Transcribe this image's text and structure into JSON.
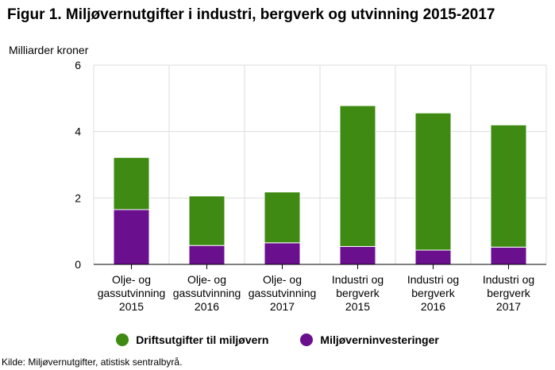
{
  "chart_data": {
    "type": "bar",
    "stacked": true,
    "title": "Figur 1. Miljøvernutgifter i industri, bergverk og utvinning 2015-2017",
    "ylabel": "Milliarder kroner",
    "xlabel": "",
    "ylim": [
      0,
      6
    ],
    "yticks": [
      0,
      2,
      4,
      6
    ],
    "grid": true,
    "legend_position": "bottom",
    "categories": [
      [
        "Olje- og",
        "gassutvinning",
        "2015"
      ],
      [
        "Olje- og",
        "gassutvinning",
        "2016"
      ],
      [
        "Olje- og",
        "gassutvinning",
        "2017"
      ],
      [
        "Industri og",
        "bergverk",
        "2015"
      ],
      [
        "Industri og",
        "bergverk",
        "2016"
      ],
      [
        "Industri og",
        "bergverk",
        "2017"
      ]
    ],
    "series": [
      {
        "name": "Miljøverninvesteringer",
        "color": "#6a0f8e",
        "values": [
          1.65,
          0.57,
          0.65,
          0.54,
          0.43,
          0.52
        ]
      },
      {
        "name": "Driftsutgifter til miljøvern",
        "color": "#3e8a12",
        "values": [
          1.57,
          1.49,
          1.53,
          4.24,
          4.13,
          3.68
        ]
      }
    ],
    "legend_order": [
      1,
      0
    ]
  },
  "source": "Kilde: Miljøvernutgifter, atistisk sentralbyrå."
}
